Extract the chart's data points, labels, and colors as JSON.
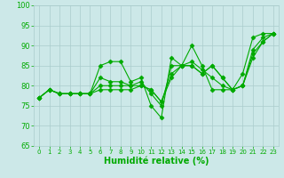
{
  "xlabel": "Humidité relative (%)",
  "xlim": [
    -0.5,
    23.5
  ],
  "ylim": [
    65,
    100
  ],
  "yticks": [
    65,
    70,
    75,
    80,
    85,
    90,
    95,
    100
  ],
  "xticks": [
    0,
    1,
    2,
    3,
    4,
    5,
    6,
    7,
    8,
    9,
    10,
    11,
    12,
    13,
    14,
    15,
    16,
    17,
    18,
    19,
    20,
    21,
    22,
    23
  ],
  "background_color": "#cce8e8",
  "grid_color": "#aacccc",
  "line_color": "#00aa00",
  "series": [
    [
      77,
      79,
      78,
      78,
      78,
      78,
      85,
      86,
      86,
      81,
      82,
      75,
      72,
      87,
      85,
      90,
      85,
      79,
      79,
      79,
      83,
      92,
      93,
      93
    ],
    [
      77,
      79,
      78,
      78,
      78,
      78,
      82,
      81,
      81,
      80,
      81,
      78,
      75,
      85,
      85,
      86,
      84,
      82,
      80,
      79,
      80,
      89,
      92,
      93
    ],
    [
      77,
      79,
      78,
      78,
      78,
      78,
      80,
      80,
      80,
      80,
      80,
      79,
      76,
      83,
      85,
      85,
      83,
      85,
      82,
      79,
      80,
      88,
      91,
      93
    ],
    [
      77,
      79,
      78,
      78,
      78,
      78,
      79,
      79,
      79,
      79,
      80,
      79,
      76,
      82,
      85,
      85,
      83,
      85,
      82,
      79,
      80,
      87,
      91,
      93
    ]
  ],
  "marker": "D",
  "marker_size": 2.5,
  "line_width": 0.8,
  "xlabel_fontsize": 7,
  "xlabel_color": "#00aa00",
  "tick_color": "#00aa00",
  "ytick_fontsize": 6,
  "xtick_fontsize": 5
}
